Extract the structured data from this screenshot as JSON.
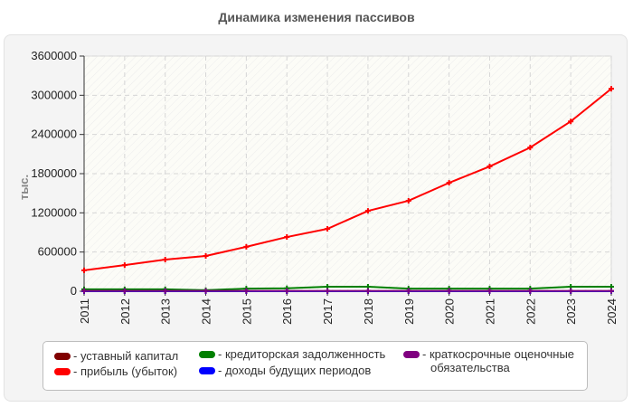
{
  "chart_data": {
    "type": "line",
    "title": "Динамика изменения пассивов",
    "xlabel": "",
    "ylabel": "тыс.",
    "ylim": [
      0,
      3600000
    ],
    "yticks": [
      "0",
      "600000",
      "1200000",
      "1800000",
      "2400000",
      "3000000",
      "3600000"
    ],
    "categories": [
      "2011",
      "2012",
      "2013",
      "2014",
      "2015",
      "2016",
      "2017",
      "2018",
      "2019",
      "2020",
      "2021",
      "2022",
      "2023",
      "2024"
    ],
    "grid": true,
    "legend_position": "bottom",
    "series": [
      {
        "name": "уставный капитал",
        "color": "#800000",
        "values": [
          10,
          10,
          10,
          10,
          10,
          10,
          10,
          10,
          10,
          10,
          10,
          10,
          10,
          10
        ]
      },
      {
        "name": "прибыль (убыток)",
        "color": "#ff0000",
        "values": [
          320000,
          400000,
          485000,
          540000,
          680000,
          830000,
          955000,
          1230000,
          1385000,
          1660000,
          1910000,
          2200000,
          2600000,
          3100000
        ]
      },
      {
        "name": "кредиторская задолженность",
        "color": "#008000",
        "values": [
          30000,
          30000,
          30000,
          15000,
          40000,
          45000,
          70000,
          70000,
          40000,
          40000,
          40000,
          40000,
          70000,
          70000
        ]
      },
      {
        "name": "доходы будущих периодов",
        "color": "#0000ff",
        "values": [
          0,
          0,
          0,
          0,
          0,
          0,
          0,
          0,
          0,
          0,
          0,
          0,
          0,
          0
        ]
      },
      {
        "name": "краткосрочные оценочные обязательства",
        "color": "#800080",
        "values": [
          5000,
          5000,
          5000,
          5000,
          5000,
          5000,
          5000,
          5000,
          5000,
          5000,
          5000,
          5000,
          5000,
          5000
        ]
      }
    ]
  },
  "legend": [
    {
      "label": "- уставный капитал",
      "color": "#800000"
    },
    {
      "label": "- прибыль (убыток)",
      "color": "#ff0000"
    },
    {
      "label": "- кредиторская задолженность",
      "color": "#008000"
    },
    {
      "label": "- доходы будущих периодов",
      "color": "#0000ff"
    },
    {
      "label": "- краткосрочные оценочные",
      "label2": "обязательства",
      "color": "#800080"
    }
  ]
}
